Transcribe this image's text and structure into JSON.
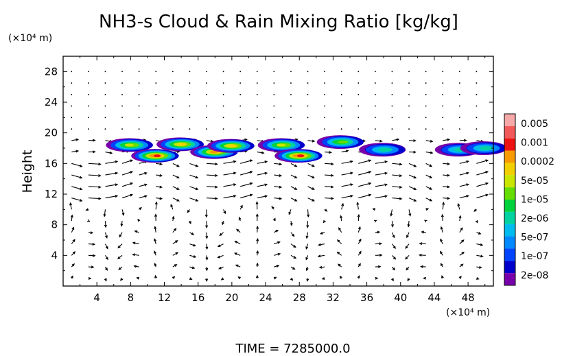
{
  "chart_data": {
    "type": "heatmap",
    "title": "NH3-s Cloud & Rain Mixing Ratio [kg/kg]",
    "ylabel": "Height",
    "x_unit": "(×10⁴ m)",
    "y_unit": "(×10⁴ m)",
    "footer": "TIME = 7285000.0",
    "xlim": [
      0,
      51
    ],
    "ylim": [
      0,
      30
    ],
    "x_ticks": [
      "4",
      "8",
      "12",
      "16",
      "20",
      "24",
      "28",
      "32",
      "36",
      "40",
      "44",
      "48"
    ],
    "y_ticks": [
      "4",
      "8",
      "12",
      "16",
      "20",
      "24",
      "28"
    ],
    "colorbar": {
      "labels": [
        "0.005",
        "0.001",
        "0.0002",
        "5e-05",
        "1e-05",
        "2e-06",
        "5e-07",
        "1e-07",
        "2e-08"
      ],
      "colors": [
        "#f7a8a8",
        "#f25a5a",
        "#ee1111",
        "#f79a00",
        "#f2d000",
        "#c8e600",
        "#66dd00",
        "#00d23c",
        "#00d2a0",
        "#00bbee",
        "#0088ff",
        "#0044ff",
        "#0000cc",
        "#7700aa"
      ]
    },
    "cloud_layer": {
      "height_range": [
        16,
        20
      ],
      "main_band_x": [
        7,
        50
      ],
      "patches": [
        {
          "x": 8,
          "y": 18.4,
          "value": "1e-05"
        },
        {
          "x": 11,
          "y": 17.0,
          "value": "0.001"
        },
        {
          "x": 14,
          "y": 18.5,
          "value": "5e-05"
        },
        {
          "x": 18,
          "y": 17.5,
          "value": "0.0002"
        },
        {
          "x": 20,
          "y": 18.3,
          "value": "5e-05"
        },
        {
          "x": 26,
          "y": 18.4,
          "value": "1e-05"
        },
        {
          "x": 28,
          "y": 17.0,
          "value": "0.001"
        },
        {
          "x": 33,
          "y": 18.8,
          "value": "2e-06"
        },
        {
          "x": 38,
          "y": 17.8,
          "value": "1e-07"
        },
        {
          "x": 47,
          "y": 17.8,
          "value": "1e-07"
        },
        {
          "x": 50,
          "y": 18.0,
          "value": "1e-07"
        }
      ]
    },
    "wind_field": {
      "description_visible": false
    }
  }
}
